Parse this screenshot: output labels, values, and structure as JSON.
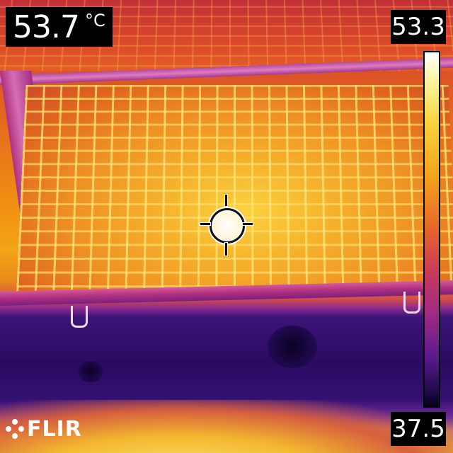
{
  "spot_measurement": {
    "value": "53.7",
    "unit": "°C"
  },
  "color_scale": {
    "max": "53.3",
    "min": "37.5",
    "palette": "iron"
  },
  "brand": {
    "logo_text": "FLIR",
    "logo_icon": "flir-logo-icon"
  },
  "crosshair": {
    "icon": "spot-meter-crosshair-icon"
  }
}
